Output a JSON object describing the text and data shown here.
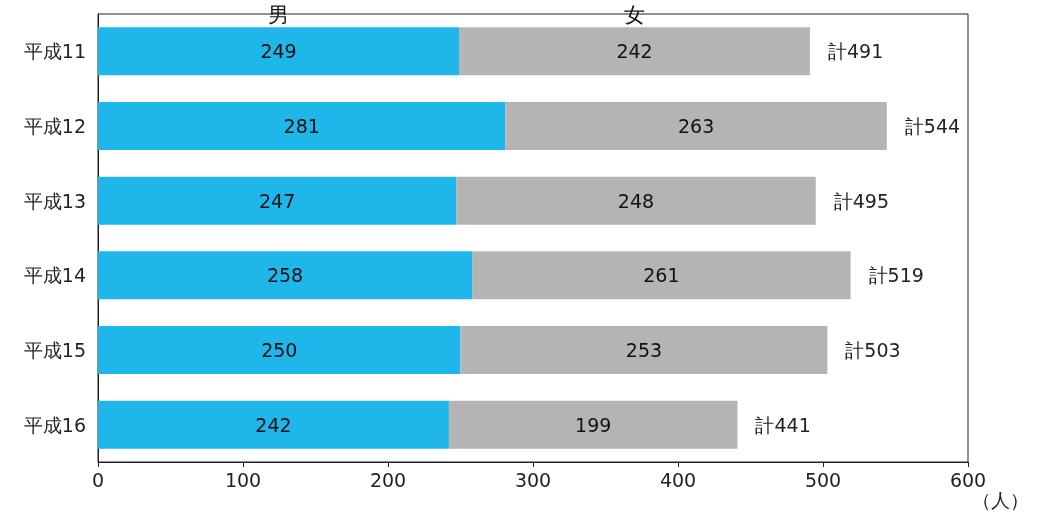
{
  "chart_data": {
    "type": "bar",
    "orientation": "horizontal",
    "stacked": true,
    "xlabel": "（人）",
    "categories": [
      "平成11",
      "平成12",
      "平成13",
      "平成14",
      "平成15",
      "平成16"
    ],
    "series": [
      {
        "name": "男",
        "color": "#1fb6ea",
        "values": [
          249,
          281,
          247,
          258,
          250,
          242
        ]
      },
      {
        "name": "女",
        "color": "#b4b4b4",
        "values": [
          242,
          263,
          248,
          261,
          253,
          199
        ]
      }
    ],
    "totals": [
      "計491",
      "計544",
      "計495",
      "計519",
      "計503",
      "計441"
    ],
    "data_labels": true,
    "xlim": [
      0,
      600
    ],
    "xticks": [
      0,
      100,
      200,
      300,
      400,
      500,
      600
    ],
    "grid": false,
    "legend": false
  }
}
